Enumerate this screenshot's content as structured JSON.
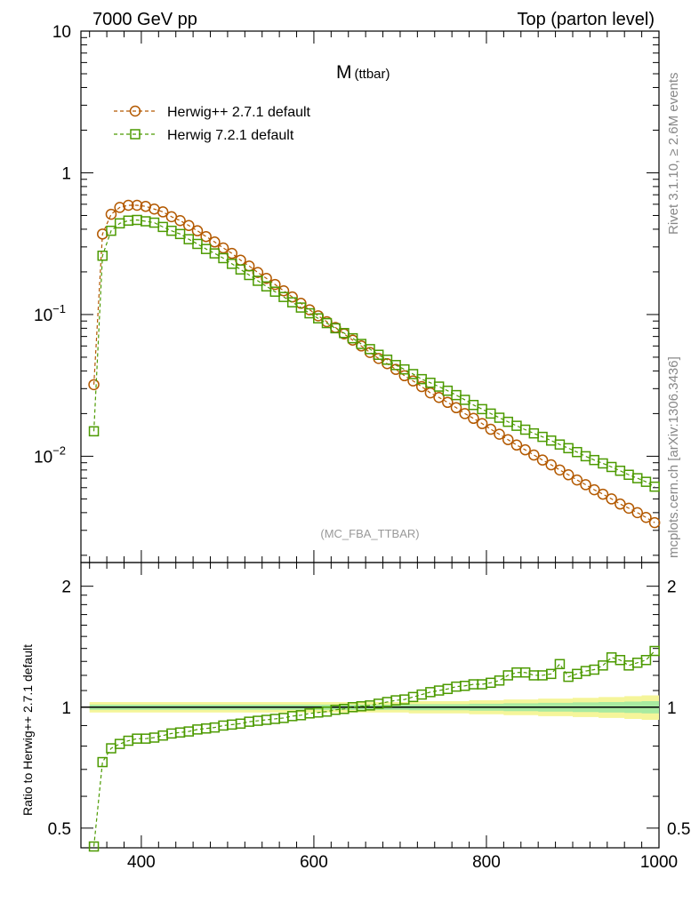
{
  "header": {
    "energy": "7000 GeV pp",
    "process": "Top (parton level)"
  },
  "side_labels": {
    "rivet": "Rivet 3.1.10, ≥ 2.6M events",
    "mcplots": "mcplots.cern.ch [arXiv:1306.3436]"
  },
  "chart_data": {
    "type": "line",
    "title_main": "M",
    "title_sub": "(ttbar)",
    "analysis_tag": "(MC_FBA_TTBAR)",
    "ratio_ylabel": "Ratio to Herwig++ 2.7.1 default",
    "x_tick_labels": [
      "400",
      "600",
      "800",
      "1000"
    ],
    "upper_y_tick_labels": [
      "10",
      "1",
      "10",
      "10"
    ],
    "upper_y_tick_exponents": [
      "",
      "",
      "−1",
      "−2"
    ],
    "ratio_y_tick_labels": [
      "2",
      "1",
      "0.5"
    ],
    "xlim": [
      330,
      1000
    ],
    "upper_ylim_log10": [
      -2.75,
      1.0
    ],
    "ratio_ylim_log10": [
      -0.35,
      0.36
    ],
    "colors": {
      "herwig_pp": "#b35900",
      "herwig7": "#4c9a00",
      "band_outer": "#f5f59a",
      "band_inner": "#a8eaa0"
    },
    "x": [
      345,
      355,
      365,
      375,
      385,
      395,
      405,
      415,
      425,
      435,
      445,
      455,
      465,
      475,
      485,
      495,
      505,
      515,
      525,
      535,
      545,
      555,
      565,
      575,
      585,
      595,
      605,
      615,
      625,
      635,
      645,
      655,
      665,
      675,
      685,
      695,
      705,
      715,
      725,
      735,
      745,
      755,
      765,
      775,
      785,
      795,
      805,
      815,
      825,
      835,
      845,
      855,
      865,
      875,
      885,
      895,
      905,
      915,
      925,
      935,
      945,
      955,
      965,
      975,
      985,
      995
    ],
    "series": [
      {
        "name": "Herwig++ 2.7.1 default",
        "marker": "circle",
        "values": [
          0.032,
          0.37,
          0.51,
          0.57,
          0.59,
          0.59,
          0.58,
          0.555,
          0.53,
          0.49,
          0.46,
          0.425,
          0.39,
          0.355,
          0.325,
          0.295,
          0.27,
          0.242,
          0.22,
          0.198,
          0.18,
          0.163,
          0.147,
          0.133,
          0.12,
          0.108,
          0.098,
          0.089,
          0.081,
          0.073,
          0.066,
          0.06,
          0.054,
          0.049,
          0.045,
          0.041,
          0.037,
          0.034,
          0.031,
          0.028,
          0.026,
          0.024,
          0.022,
          0.02,
          0.0185,
          0.017,
          0.0155,
          0.0143,
          0.0131,
          0.012,
          0.0111,
          0.0102,
          0.0094,
          0.0087,
          0.008,
          0.0074,
          0.0068,
          0.0063,
          0.0058,
          0.0054,
          0.005,
          0.0046,
          0.0043,
          0.004,
          0.0037,
          0.0034
        ]
      },
      {
        "name": "Herwig 7.2.1 default",
        "marker": "square",
        "values": [
          0.015,
          0.26,
          0.39,
          0.44,
          0.46,
          0.465,
          0.455,
          0.445,
          0.415,
          0.39,
          0.37,
          0.34,
          0.315,
          0.29,
          0.27,
          0.25,
          0.228,
          0.208,
          0.19,
          0.173,
          0.158,
          0.145,
          0.133,
          0.122,
          0.112,
          0.102,
          0.094,
          0.087,
          0.08,
          0.074,
          0.068,
          0.062,
          0.057,
          0.052,
          0.048,
          0.044,
          0.041,
          0.038,
          0.035,
          0.033,
          0.031,
          0.029,
          0.027,
          0.025,
          0.023,
          0.0215,
          0.02,
          0.0187,
          0.0175,
          0.0164,
          0.0154,
          0.0145,
          0.0137,
          0.0129,
          0.0121,
          0.0114,
          0.0107,
          0.01,
          0.0094,
          0.0089,
          0.0084,
          0.0079,
          0.0074,
          0.007,
          0.0066,
          0.0061
        ]
      }
    ],
    "ratio": [
      0.45,
      0.73,
      0.79,
      0.81,
      0.825,
      0.835,
      0.835,
      0.84,
      0.85,
      0.86,
      0.865,
      0.87,
      0.88,
      0.885,
      0.89,
      0.9,
      0.905,
      0.91,
      0.92,
      0.925,
      0.93,
      0.935,
      0.94,
      0.95,
      0.955,
      0.965,
      0.97,
      0.975,
      0.985,
      0.99,
      1.0,
      1.005,
      1.01,
      1.02,
      1.03,
      1.04,
      1.045,
      1.06,
      1.075,
      1.09,
      1.1,
      1.11,
      1.125,
      1.13,
      1.14,
      1.14,
      1.15,
      1.165,
      1.2,
      1.22,
      1.22,
      1.2,
      1.2,
      1.21,
      1.28,
      1.19,
      1.21,
      1.23,
      1.24,
      1.27,
      1.33,
      1.31,
      1.27,
      1.29,
      1.31,
      1.38
    ],
    "band_halfwidth": [
      0.03,
      0.03,
      0.03,
      0.03,
      0.03,
      0.03,
      0.03,
      0.03,
      0.03,
      0.03,
      0.03,
      0.03,
      0.03,
      0.03,
      0.03,
      0.03,
      0.03,
      0.03,
      0.03,
      0.03,
      0.03,
      0.03,
      0.03,
      0.03,
      0.03,
      0.03,
      0.03,
      0.03,
      0.03,
      0.03,
      0.03,
      0.03,
      0.03,
      0.03,
      0.03,
      0.03,
      0.03,
      0.035,
      0.035,
      0.035,
      0.035,
      0.035,
      0.035,
      0.035,
      0.04,
      0.04,
      0.04,
      0.04,
      0.045,
      0.045,
      0.045,
      0.045,
      0.05,
      0.05,
      0.05,
      0.05,
      0.055,
      0.055,
      0.055,
      0.06,
      0.06,
      0.06,
      0.065,
      0.065,
      0.07,
      0.07
    ]
  }
}
